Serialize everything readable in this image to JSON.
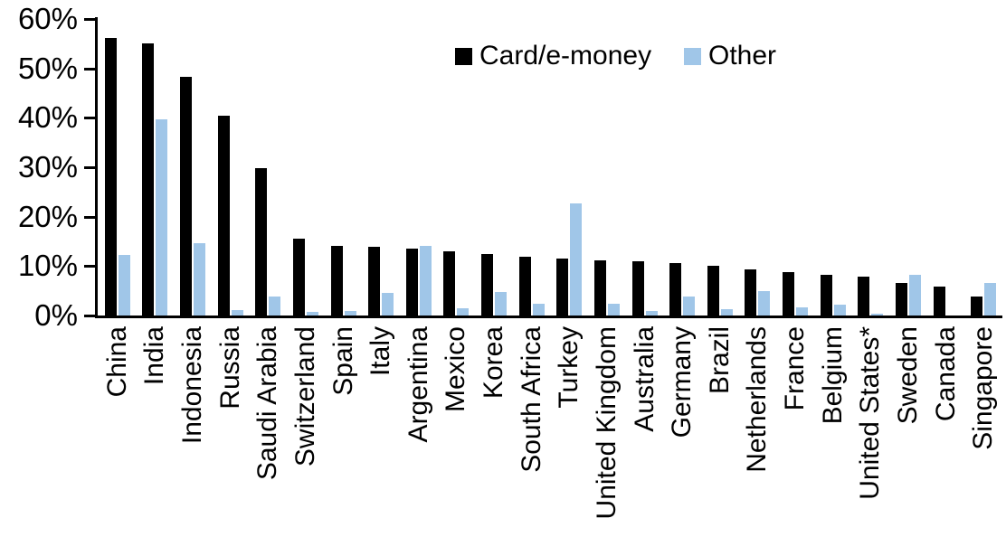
{
  "chart_data": {
    "type": "bar",
    "title": "",
    "xlabel": "",
    "ylabel": "",
    "ylim": [
      0,
      60
    ],
    "ytick_step": 10,
    "ytick_labels": [
      "0%",
      "10%",
      "20%",
      "30%",
      "40%",
      "50%",
      "60%"
    ],
    "grid": false,
    "legend_position": "top-center",
    "categories": [
      "China",
      "India",
      "Indonesia",
      "Russia",
      "Saudi Arabia",
      "Switzerland",
      "Spain",
      "Italy",
      "Argentina",
      "Mexico",
      "Korea",
      "South Africa",
      "Turkey",
      "United Kingdom",
      "Australia",
      "Germany",
      "Brazil",
      "Netherlands",
      "France",
      "Belgium",
      "United States*",
      "Sweden",
      "Canada",
      "Singapore"
    ],
    "series": [
      {
        "name": "Card/e-money",
        "color": "#000000",
        "values": [
          56.2,
          55.1,
          48.3,
          40.5,
          29.8,
          15.6,
          14.1,
          13.9,
          13.5,
          13.0,
          12.4,
          11.9,
          11.6,
          11.1,
          10.9,
          10.7,
          10.1,
          9.4,
          8.7,
          8.2,
          7.9,
          6.5,
          5.9,
          3.9
        ]
      },
      {
        "name": "Other",
        "color": "#A0C6E8",
        "values": [
          12.3,
          39.7,
          14.6,
          1.1,
          3.8,
          0.8,
          1.0,
          4.6,
          14.0,
          1.4,
          4.8,
          2.4,
          22.6,
          2.4,
          1.0,
          3.9,
          1.3,
          5.0,
          1.7,
          2.2,
          0.4,
          8.2,
          0.0,
          6.6
        ]
      }
    ]
  }
}
